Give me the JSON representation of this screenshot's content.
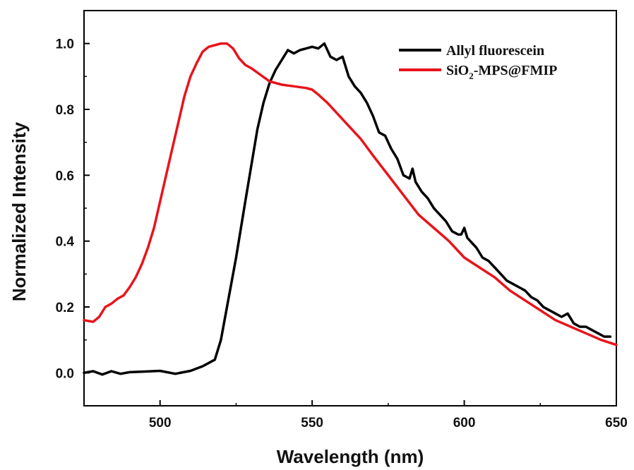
{
  "chart_data": {
    "type": "line",
    "title": "",
    "xlabel": "Wavelength (nm)",
    "ylabel": "Normalized Intensity",
    "xlim": [
      475,
      650
    ],
    "ylim": [
      -0.1,
      1.1
    ],
    "x_ticks": [
      500,
      550,
      600,
      650
    ],
    "y_ticks": [
      0.0,
      0.2,
      0.4,
      0.6,
      0.8,
      1.0
    ],
    "x_tick_labels": [
      "500",
      "550",
      "600",
      "650"
    ],
    "y_tick_labels": [
      "0.0",
      "0.2",
      "0.4",
      "0.6",
      "0.8",
      "1.0"
    ],
    "grid": false,
    "legend_position": "top-right",
    "series": [
      {
        "name": "Allyl fluorescein",
        "color": "#000000",
        "x": [
          475,
          478,
          481,
          484,
          487,
          490,
          495,
          500,
          505,
          510,
          514,
          516,
          518,
          520,
          522,
          525,
          528,
          530,
          532,
          534,
          536,
          538,
          540,
          542,
          544,
          546,
          548,
          550,
          552,
          554,
          556,
          558,
          560,
          562,
          564,
          566,
          568,
          570,
          572,
          574,
          576,
          578,
          580,
          582,
          583,
          584,
          586,
          588,
          590,
          592,
          594,
          596,
          598,
          599,
          600,
          601,
          602,
          604,
          606,
          608,
          610,
          612,
          614,
          616,
          618,
          620,
          622,
          624,
          626,
          628,
          630,
          632,
          634,
          636,
          638,
          640,
          642,
          644,
          646,
          648
        ],
        "y": [
          0.0,
          0.005,
          -0.005,
          0.005,
          -0.003,
          0.002,
          0.004,
          0.006,
          -0.003,
          0.006,
          0.02,
          0.03,
          0.04,
          0.1,
          0.2,
          0.35,
          0.52,
          0.63,
          0.74,
          0.82,
          0.88,
          0.92,
          0.95,
          0.98,
          0.97,
          0.98,
          0.985,
          0.99,
          0.985,
          1.0,
          0.96,
          0.95,
          0.96,
          0.9,
          0.87,
          0.85,
          0.82,
          0.78,
          0.73,
          0.72,
          0.68,
          0.65,
          0.6,
          0.59,
          0.62,
          0.58,
          0.55,
          0.53,
          0.5,
          0.48,
          0.46,
          0.43,
          0.42,
          0.42,
          0.44,
          0.41,
          0.4,
          0.38,
          0.35,
          0.34,
          0.32,
          0.3,
          0.28,
          0.27,
          0.26,
          0.25,
          0.23,
          0.22,
          0.2,
          0.19,
          0.18,
          0.17,
          0.18,
          0.15,
          0.14,
          0.14,
          0.13,
          0.12,
          0.11,
          0.11
        ]
      },
      {
        "name": "SiO2-MPS@FMIP",
        "color": "#e8141b",
        "x": [
          475,
          478,
          480,
          482,
          484,
          486,
          488,
          490,
          492,
          494,
          496,
          498,
          500,
          502,
          504,
          506,
          508,
          510,
          512,
          514,
          516,
          518,
          520,
          522,
          524,
          526,
          528,
          530,
          533,
          536,
          540,
          544,
          548,
          550,
          552,
          555,
          558,
          562,
          566,
          570,
          575,
          580,
          585,
          590,
          595,
          600,
          605,
          610,
          615,
          620,
          625,
          630,
          635,
          640,
          645,
          650
        ],
        "y": [
          0.16,
          0.155,
          0.17,
          0.2,
          0.21,
          0.225,
          0.235,
          0.26,
          0.29,
          0.33,
          0.38,
          0.44,
          0.52,
          0.6,
          0.68,
          0.76,
          0.84,
          0.9,
          0.94,
          0.975,
          0.99,
          0.995,
          1.0,
          1.0,
          0.985,
          0.955,
          0.935,
          0.925,
          0.905,
          0.885,
          0.875,
          0.87,
          0.865,
          0.86,
          0.845,
          0.82,
          0.79,
          0.75,
          0.71,
          0.66,
          0.6,
          0.54,
          0.48,
          0.44,
          0.4,
          0.35,
          0.32,
          0.29,
          0.25,
          0.22,
          0.19,
          0.16,
          0.14,
          0.12,
          0.1,
          0.085
        ]
      }
    ]
  }
}
